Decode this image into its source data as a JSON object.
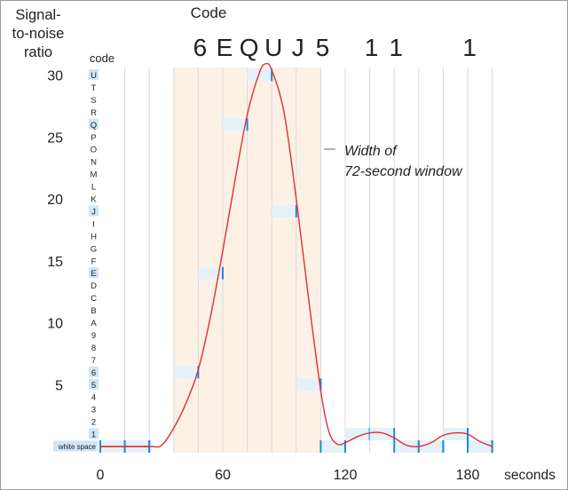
{
  "chart_data": {
    "type": "line",
    "ylabel": "Signal-\nto-noise\nratio",
    "xlabel": "seconds",
    "code_axis_label": "code",
    "code_title": "Code",
    "annotation": "Width of\n72-second window",
    "xlim": [
      0,
      192
    ],
    "ylim": [
      0,
      31
    ],
    "x_ticks": [
      0,
      60,
      120,
      180
    ],
    "y_ticks": [
      5,
      10,
      15,
      20,
      25,
      30
    ],
    "code_levels": [
      "white space",
      "1",
      "2",
      "3",
      "4",
      "5",
      "6",
      "7",
      "8",
      "9",
      "A",
      "B",
      "C",
      "D",
      "E",
      "F",
      "G",
      "H",
      "I",
      "J",
      "K",
      "L",
      "M",
      "N",
      "O",
      "P",
      "Q",
      "R",
      "S",
      "T",
      "U"
    ],
    "highlighted_levels": [
      "white space",
      "1",
      "5",
      "6",
      "E",
      "J",
      "Q",
      "U"
    ],
    "decoded_symbols": [
      {
        "label": "6",
        "x": 48
      },
      {
        "label": "E",
        "x": 60
      },
      {
        "label": "Q",
        "x": 72
      },
      {
        "label": "U",
        "x": 84
      },
      {
        "label": "J",
        "x": 96
      },
      {
        "label": "5",
        "x": 108
      },
      {
        "label": "1",
        "x": 132
      },
      {
        "label": "1",
        "x": 144
      },
      {
        "label": "1",
        "x": 180
      }
    ],
    "window_range": [
      36,
      108
    ],
    "segments": [
      {
        "x_start": 0,
        "x_end": 12,
        "y": 0
      },
      {
        "x_start": 12,
        "x_end": 24,
        "y": 0
      },
      {
        "x_start": 36,
        "x_end": 48,
        "y": 6
      },
      {
        "x_start": 48,
        "x_end": 60,
        "y": 14
      },
      {
        "x_start": 72,
        "x_end": 84,
        "y": 30
      },
      {
        "x_start": 60,
        "x_end": 72,
        "y": 26
      },
      {
        "x_start": 84,
        "x_end": 96,
        "y": 19
      },
      {
        "x_start": 96,
        "x_end": 108,
        "y": 5
      },
      {
        "x_start": 108,
        "x_end": 120,
        "y": 0
      },
      {
        "x_start": 120,
        "x_end": 132,
        "y": 1
      },
      {
        "x_start": 132,
        "x_end": 144,
        "y": 1
      },
      {
        "x_start": 144,
        "x_end": 156,
        "y": 0
      },
      {
        "x_start": 156,
        "x_end": 168,
        "y": 0
      },
      {
        "x_start": 168,
        "x_end": 180,
        "y": 1
      },
      {
        "x_start": 180,
        "x_end": 192,
        "y": 0
      }
    ],
    "curve": [
      {
        "x": 0,
        "y": 0
      },
      {
        "x": 24,
        "y": 0
      },
      {
        "x": 30,
        "y": 0.1
      },
      {
        "x": 36,
        "y": 1.5
      },
      {
        "x": 42,
        "y": 3.5
      },
      {
        "x": 48,
        "y": 6.2
      },
      {
        "x": 54,
        "y": 10.5
      },
      {
        "x": 60,
        "y": 15.8
      },
      {
        "x": 66,
        "y": 21.5
      },
      {
        "x": 72,
        "y": 26.8
      },
      {
        "x": 78,
        "y": 30.2
      },
      {
        "x": 81,
        "y": 30.9
      },
      {
        "x": 84,
        "y": 30.4
      },
      {
        "x": 90,
        "y": 27.0
      },
      {
        "x": 96,
        "y": 20.0
      },
      {
        "x": 102,
        "y": 12.0
      },
      {
        "x": 108,
        "y": 4.5
      },
      {
        "x": 112,
        "y": 1.2
      },
      {
        "x": 116,
        "y": 0.2
      },
      {
        "x": 120,
        "y": 0.3
      },
      {
        "x": 126,
        "y": 0.8
      },
      {
        "x": 132,
        "y": 1.1
      },
      {
        "x": 138,
        "y": 1.1
      },
      {
        "x": 144,
        "y": 0.7
      },
      {
        "x": 150,
        "y": 0.1
      },
      {
        "x": 156,
        "y": 0.0
      },
      {
        "x": 162,
        "y": 0.3
      },
      {
        "x": 168,
        "y": 0.9
      },
      {
        "x": 174,
        "y": 1.1
      },
      {
        "x": 180,
        "y": 1.0
      },
      {
        "x": 186,
        "y": 0.4
      },
      {
        "x": 192,
        "y": 0.0
      }
    ],
    "colors": {
      "curve": "#e03030",
      "segment": "#1e88e5",
      "segment_fill": "#e4f1f8",
      "window_fill": "#fdf1e6",
      "grid": "#d8d8d8",
      "code_highlight": "#cfe6f6"
    }
  }
}
